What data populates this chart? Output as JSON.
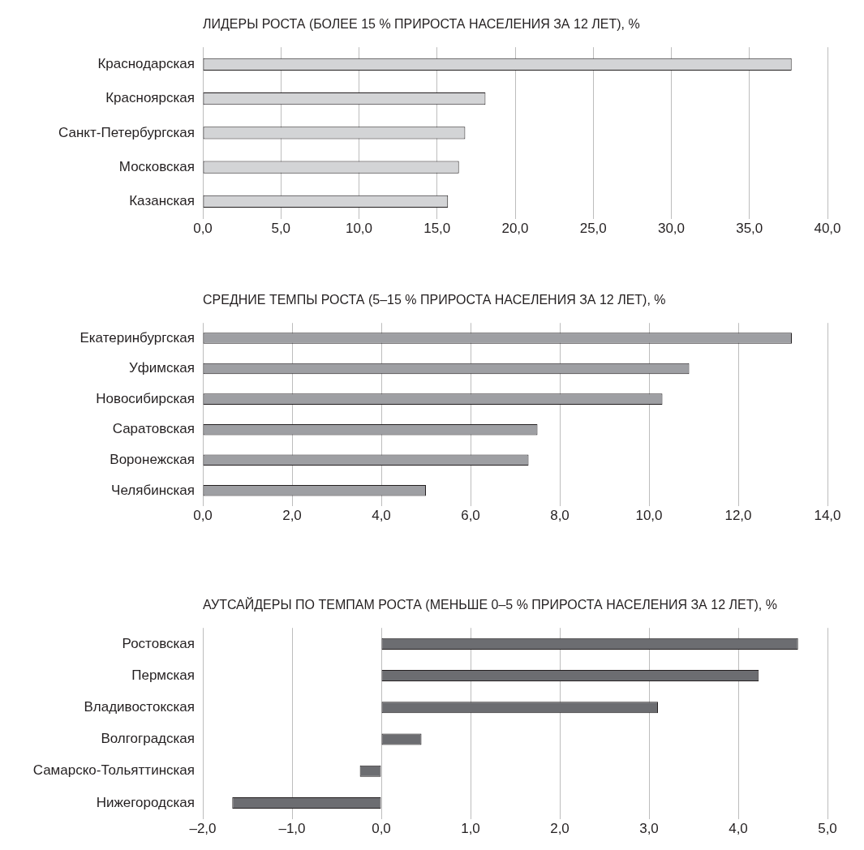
{
  "chart_data": [
    {
      "type": "bar",
      "orientation": "horizontal",
      "title": "ЛИДЕРЫ РОСТА (БОЛЕЕ 15 % ПРИРОСТА НАСЕЛЕНИЯ ЗА 12 ЛЕТ), %",
      "categories": [
        "Краснодарская",
        "Красноярская",
        "Санкт-Петербургская",
        "Московская",
        "Казанская"
      ],
      "values": [
        37.7,
        18.1,
        16.8,
        16.4,
        15.7
      ],
      "color": "#d3d4d6",
      "xlim": [
        0,
        40
      ],
      "xticks": [
        {
          "value": 0,
          "label": "0,0"
        },
        {
          "value": 5,
          "label": "5,0"
        },
        {
          "value": 10,
          "label": "10,0"
        },
        {
          "value": 15,
          "label": "15,0"
        },
        {
          "value": 20,
          "label": "20,0"
        },
        {
          "value": 25,
          "label": "25,0"
        },
        {
          "value": 30,
          "label": "30,0"
        },
        {
          "value": 35,
          "label": "35,0"
        },
        {
          "value": 40,
          "label": "40,0"
        }
      ],
      "grid": "x",
      "legend": false
    },
    {
      "type": "bar",
      "orientation": "horizontal",
      "title": "СРЕДНИЕ ТЕМПЫ РОСТА (5–15 % ПРИРОСТА НАСЕЛЕНИЯ ЗА 12 ЛЕТ), %",
      "categories": [
        "Екатеринбургская",
        "Уфимская",
        "Новосибирская",
        "Саратовская",
        "Воронежская",
        "Челябинская"
      ],
      "values": [
        13.2,
        10.9,
        10.3,
        7.5,
        7.3,
        5.0
      ],
      "color": "#9e9fa3",
      "xlim": [
        0,
        14
      ],
      "xticks": [
        {
          "value": 0,
          "label": "0,0"
        },
        {
          "value": 2,
          "label": "2,0"
        },
        {
          "value": 4,
          "label": "4,0"
        },
        {
          "value": 6,
          "label": "6,0"
        },
        {
          "value": 8,
          "label": "8,0"
        },
        {
          "value": 10,
          "label": "10,0"
        },
        {
          "value": 12,
          "label": "12,0"
        },
        {
          "value": 14,
          "label": "14,0"
        }
      ],
      "grid": "x",
      "legend": false
    },
    {
      "type": "bar",
      "orientation": "horizontal",
      "title": "АУТСАЙДЕРЫ ПО ТЕМПАМ РОСТА (МЕНЬШЕ 0–5 % ПРИРОСТА НАСЕЛЕНИЯ ЗА 12 ЛЕТ), %",
      "categories": [
        "Ростовская",
        "Пермская",
        "Владивостокская",
        "Волгоградская",
        "Самарско-Тольяттинская",
        "Нижегородская"
      ],
      "values": [
        4.67,
        4.23,
        3.1,
        0.45,
        -0.24,
        -1.67
      ],
      "color": "#6c6d71",
      "xlim": [
        -2,
        5
      ],
      "xticks": [
        {
          "value": -2,
          "label": "–2,0"
        },
        {
          "value": -1,
          "label": "–1,0"
        },
        {
          "value": 0,
          "label": "0,0"
        },
        {
          "value": 1,
          "label": "1,0"
        },
        {
          "value": 2,
          "label": "2,0"
        },
        {
          "value": 3,
          "label": "3,0"
        },
        {
          "value": 4,
          "label": "4,0"
        },
        {
          "value": 5,
          "label": "5,0"
        }
      ],
      "grid": "x",
      "legend": false
    }
  ]
}
